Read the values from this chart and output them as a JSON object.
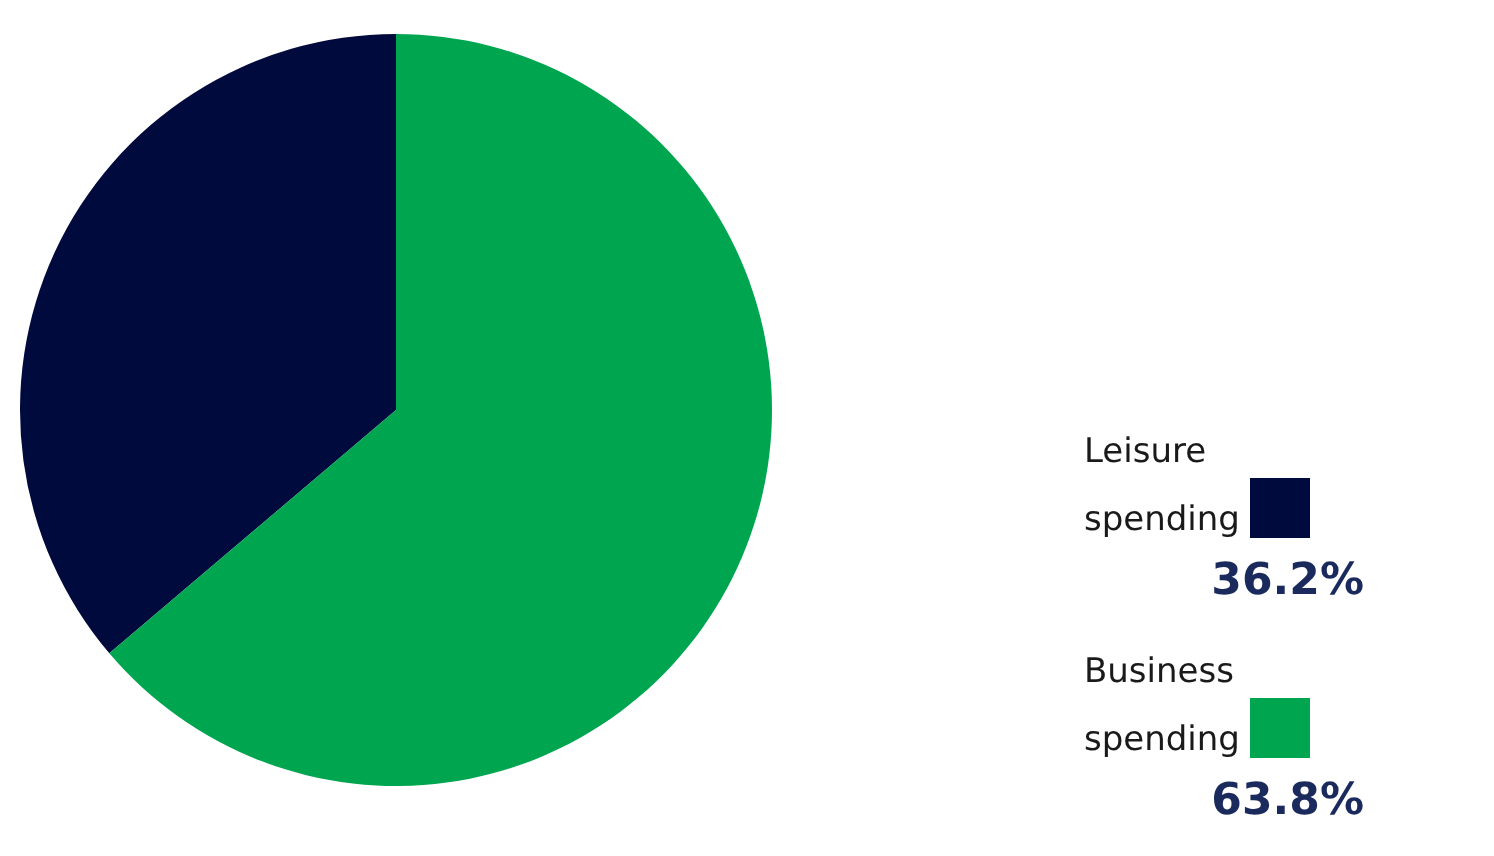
{
  "chart_data": {
    "type": "pie",
    "categories": [
      "Leisure spending",
      "Business spending"
    ],
    "values": [
      36.2,
      63.8
    ],
    "colors": [
      "#000a3c",
      "#00a54f"
    ],
    "value_labels": [
      "36.2%",
      "63.8%"
    ],
    "legend": "right"
  }
}
